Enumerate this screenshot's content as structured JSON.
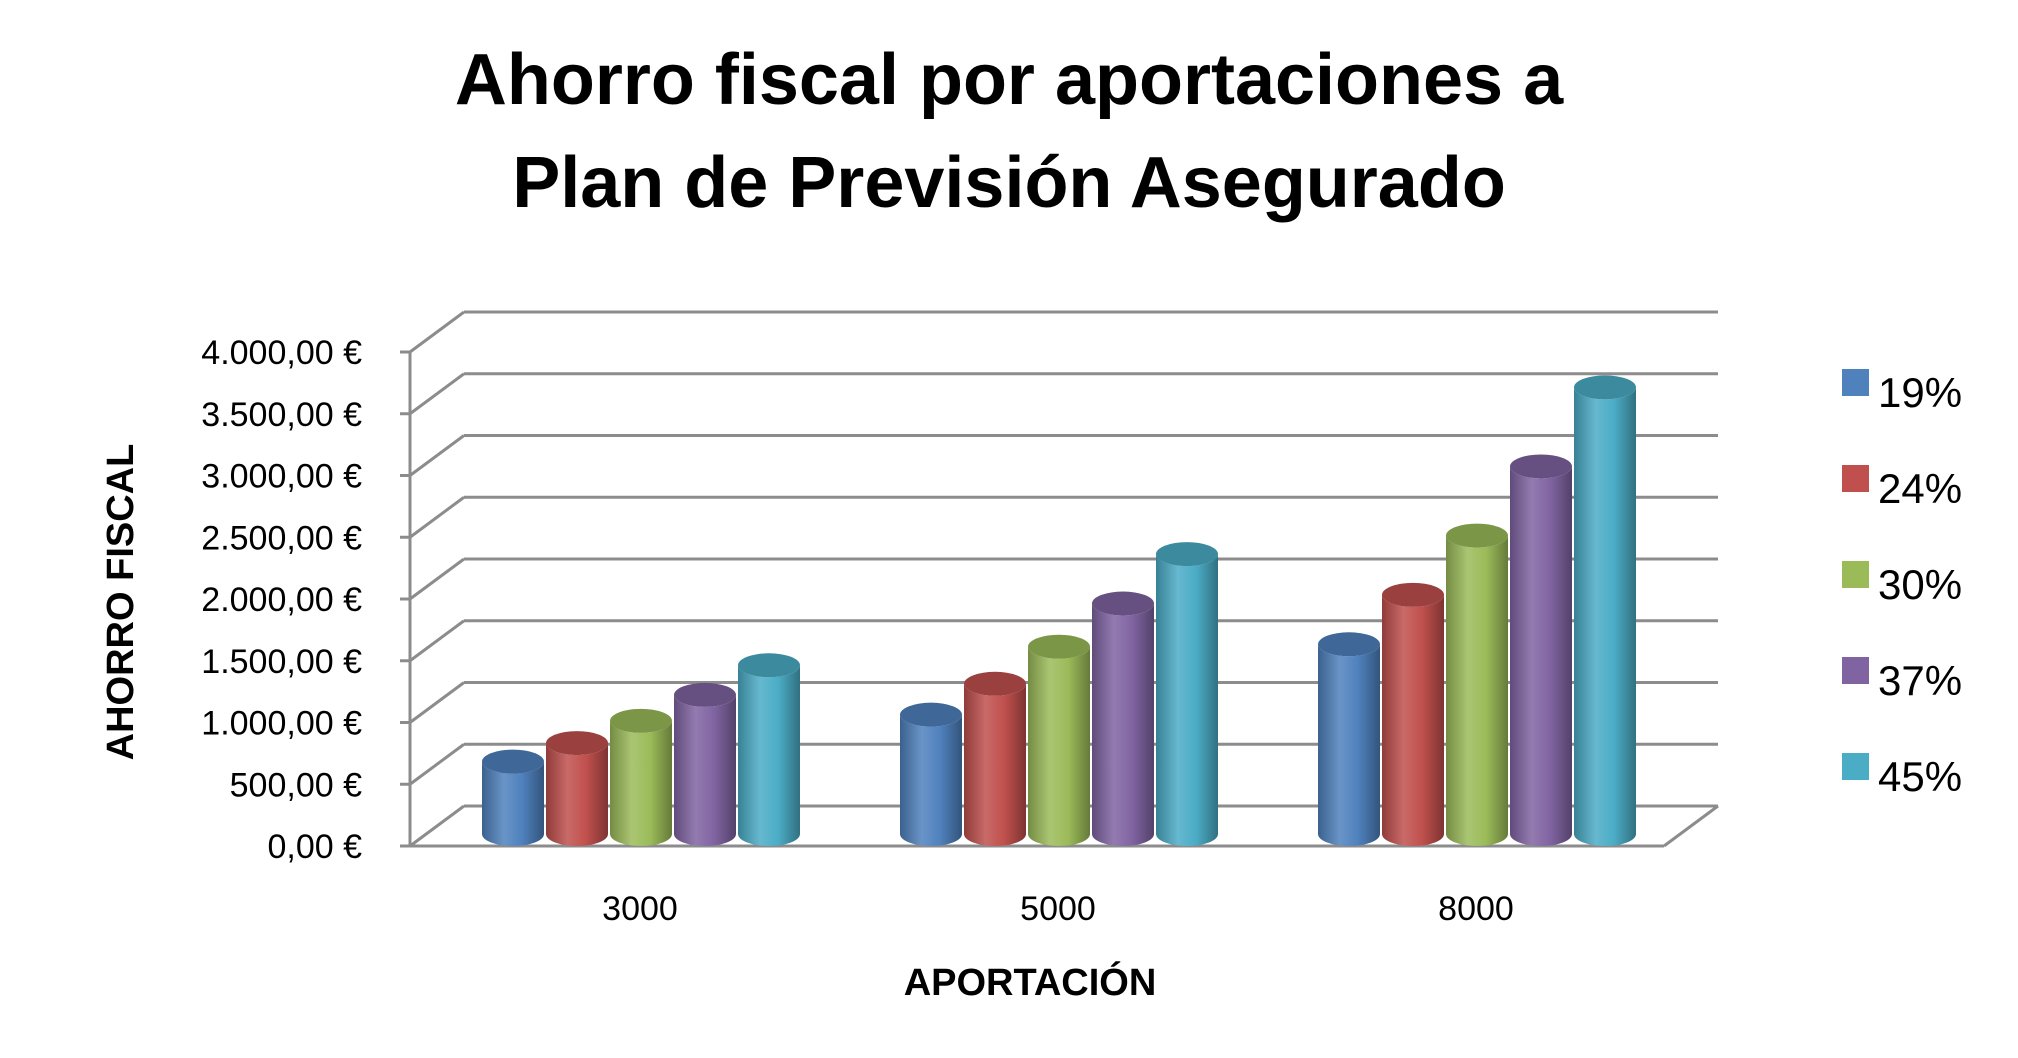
{
  "chart_data": {
    "type": "bar",
    "title_lines": [
      "Ahorro fiscal por aportaciones a",
      "Plan de Previsión Asegurado"
    ],
    "xlabel": "APORTACIÓN",
    "ylabel": "AHORRO FISCAL",
    "categories": [
      "3000",
      "5000",
      "8000"
    ],
    "y_ticks": [
      "0,00 €",
      "500,00 €",
      "1.000,00 €",
      "1.500,00 €",
      "2.000,00 €",
      "2.500,00 €",
      "3.000,00 €",
      "3.500,00 €",
      "4.000,00 €"
    ],
    "ylim": [
      0,
      4000
    ],
    "grid": true,
    "legend_position": "right",
    "series": [
      {
        "name": "19%",
        "color": "#4F81BD",
        "values": [
          570,
          950,
          1520
        ]
      },
      {
        "name": "24%",
        "color": "#C0504D",
        "values": [
          720,
          1200,
          1920
        ]
      },
      {
        "name": "30%",
        "color": "#9BBB59",
        "values": [
          900,
          1500,
          2400
        ]
      },
      {
        "name": "37%",
        "color": "#8064A2",
        "values": [
          1110,
          1850,
          2960
        ]
      },
      {
        "name": "45%",
        "color": "#4BACC6",
        "values": [
          1350,
          2250,
          3600
        ]
      }
    ]
  }
}
